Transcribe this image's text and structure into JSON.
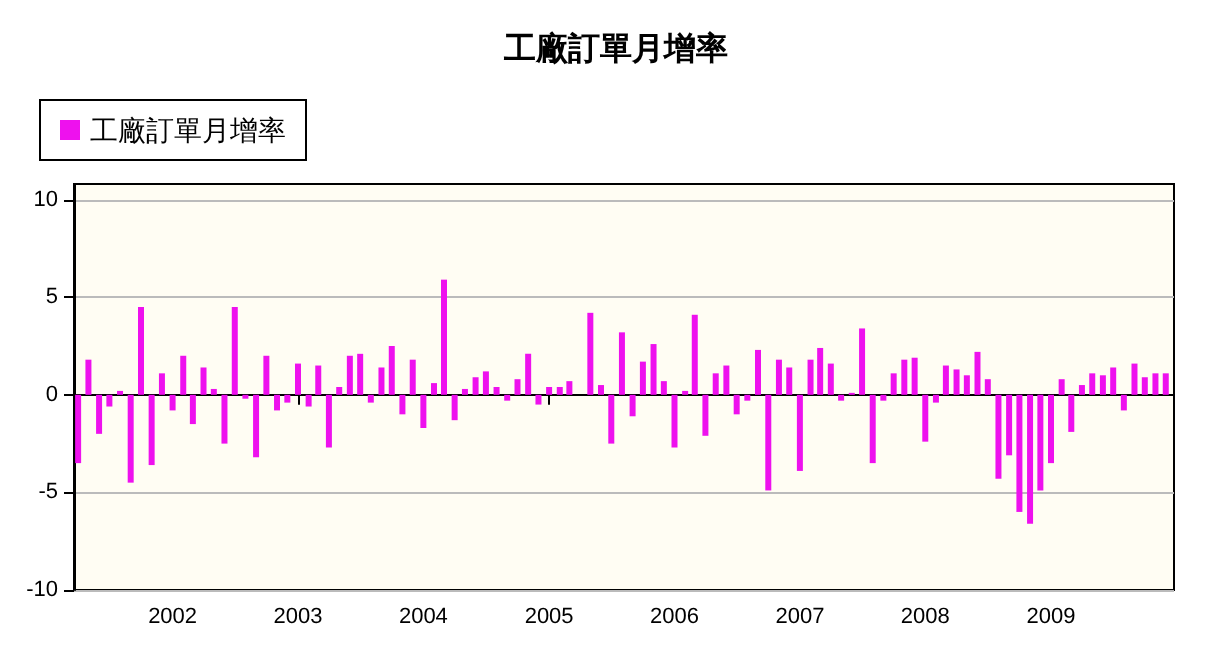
{
  "chart_data": {
    "type": "bar",
    "title": "工廠訂單月增率",
    "x": [
      "2001-04",
      "2001-05",
      "2001-06",
      "2001-07",
      "2001-08",
      "2001-09",
      "2001-10",
      "2001-11",
      "2001-12",
      "2002-01",
      "2002-02",
      "2002-03",
      "2002-04",
      "2002-05",
      "2002-06",
      "2002-07",
      "2002-08",
      "2002-09",
      "2002-10",
      "2002-11",
      "2002-12",
      "2003-01",
      "2003-02",
      "2003-03",
      "2003-04",
      "2003-05",
      "2003-06",
      "2003-07",
      "2003-08",
      "2003-09",
      "2003-10",
      "2003-11",
      "2003-12",
      "2004-01",
      "2004-02",
      "2004-03",
      "2004-04",
      "2004-05",
      "2004-06",
      "2004-07",
      "2004-08",
      "2004-09",
      "2004-10",
      "2004-11",
      "2004-12",
      "2005-01",
      "2005-02",
      "2005-03",
      "2005-04",
      "2005-05",
      "2005-06",
      "2005-07",
      "2005-08",
      "2005-09",
      "2005-10",
      "2005-11",
      "2005-12",
      "2006-01",
      "2006-02",
      "2006-03",
      "2006-04",
      "2006-05",
      "2006-06",
      "2006-07",
      "2006-08",
      "2006-09",
      "2006-10",
      "2006-11",
      "2006-12",
      "2007-01",
      "2007-02",
      "2007-03",
      "2007-04",
      "2007-05",
      "2007-06",
      "2007-07",
      "2007-08",
      "2007-09",
      "2007-10",
      "2007-11",
      "2007-12",
      "2008-01",
      "2008-02",
      "2008-03",
      "2008-04",
      "2008-05",
      "2008-06",
      "2008-07",
      "2008-08",
      "2008-09",
      "2008-10",
      "2008-11",
      "2008-12",
      "2009-01",
      "2009-02",
      "2009-03",
      "2009-04",
      "2009-05",
      "2009-06",
      "2009-07",
      "2009-08",
      "2009-09",
      "2009-10",
      "2009-11",
      "2009-12"
    ],
    "series": [
      {
        "name": "工廠訂單月增率",
        "color": "#ee11ee",
        "values": [
          -3.5,
          1.8,
          -2.0,
          -0.6,
          0.2,
          -4.5,
          4.5,
          -3.6,
          1.1,
          -0.8,
          2.0,
          -1.5,
          1.4,
          0.3,
          -2.5,
          4.5,
          -0.2,
          -3.2,
          2.0,
          -0.8,
          -0.4,
          1.6,
          -0.6,
          1.5,
          -2.7,
          0.4,
          2.0,
          2.1,
          -0.4,
          1.4,
          2.5,
          -1.0,
          1.8,
          -1.7,
          0.6,
          5.9,
          -1.3,
          0.3,
          0.9,
          1.2,
          0.4,
          -0.3,
          0.8,
          2.1,
          -0.5,
          0.4,
          0.4,
          0.7,
          0.0,
          4.2,
          0.5,
          -2.5,
          3.2,
          -1.1,
          1.7,
          2.6,
          0.7,
          -2.7,
          0.2,
          4.1,
          -2.1,
          1.1,
          1.5,
          -1.0,
          -0.3,
          2.3,
          -4.9,
          1.8,
          1.4,
          -3.9,
          1.8,
          2.4,
          1.6,
          -0.3,
          0.1,
          3.4,
          -3.5,
          -0.3,
          1.1,
          1.8,
          1.9,
          -2.4,
          -0.4,
          1.5,
          1.3,
          1.0,
          2.2,
          0.8,
          -4.3,
          -3.1,
          -6.0,
          -6.6,
          -4.9,
          -3.5,
          0.8,
          -1.9,
          0.5,
          1.1,
          1.0,
          1.4,
          -0.8,
          1.6,
          0.9,
          1.1,
          1.1
        ]
      }
    ],
    "xlim": [
      "2001-03-20",
      "2009-12-25"
    ],
    "xticks": [
      "2002",
      "2003",
      "2004",
      "2005",
      "2006",
      "2007",
      "2008",
      "2009"
    ],
    "ylim": [
      -10,
      10.8
    ],
    "yticks": [
      -10,
      -5,
      0,
      5,
      10
    ],
    "grid": "y",
    "legend": "top left"
  }
}
